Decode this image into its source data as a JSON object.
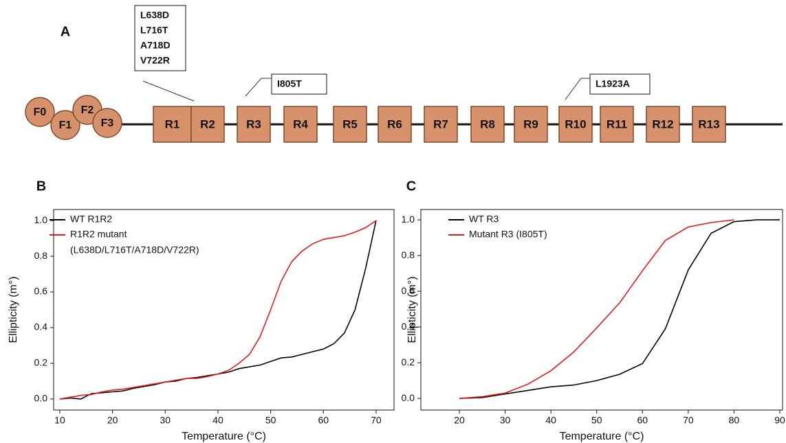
{
  "diagram": {
    "label": "A",
    "domains": [
      "F0",
      "F1",
      "F2",
      "F3"
    ],
    "repeats": [
      "R1",
      "R2",
      "R3",
      "R4",
      "R5",
      "R6",
      "R7",
      "R8",
      "R9",
      "R10",
      "R11",
      "R12",
      "R13"
    ],
    "mutations": [
      [
        "L638D",
        "L716T",
        "A718D",
        "V722R"
      ],
      [
        "I805T"
      ],
      [
        "L1923A"
      ]
    ]
  },
  "chart_data": [
    {
      "type": "line",
      "label": "B",
      "xlabel": "Temperature (°C)",
      "ylabel": "Ellipticity (m°)",
      "xlim": [
        8.83,
        73.4
      ],
      "ylim": [
        -0.062,
        1.062
      ],
      "xticks": [
        10,
        20,
        30,
        40,
        50,
        60,
        70
      ],
      "yticks": [
        {
          "value": 0,
          "label": "0.0"
        },
        0.2,
        0.4,
        0.6,
        0.8,
        {
          "value": 1,
          "label": "1.0"
        }
      ],
      "series": [
        {
          "name": "WT R1R2",
          "color": "#000000",
          "x": [
            10,
            12,
            14,
            16,
            18,
            20,
            22,
            24,
            26,
            28,
            30,
            32,
            34,
            36,
            38,
            40,
            42,
            44,
            46,
            48,
            50,
            52,
            54,
            56,
            58,
            60,
            62,
            64,
            66,
            68,
            70
          ],
          "values": [
            0.0,
            0.005,
            0.0,
            0.03,
            0.035,
            0.04,
            0.045,
            0.06,
            0.07,
            0.08,
            0.095,
            0.1,
            0.115,
            0.12,
            0.13,
            0.14,
            0.15,
            0.17,
            0.18,
            0.19,
            0.21,
            0.23,
            0.235,
            0.25,
            0.265,
            0.28,
            0.31,
            0.37,
            0.5,
            0.73,
            1.0
          ]
        },
        {
          "name": "R1R2 mutant",
          "note": "(L638D/L716T/A718D/V722R)",
          "color": "#e8191c",
          "x": [
            10,
            12,
            14,
            16,
            18,
            20,
            22,
            24,
            26,
            28,
            30,
            32,
            34,
            36,
            38,
            40,
            42,
            44,
            46,
            48,
            50,
            52,
            54,
            56,
            58,
            60,
            62,
            64,
            66,
            68,
            70
          ],
          "values": [
            0.0,
            0.01,
            0.02,
            0.025,
            0.04,
            0.05,
            0.055,
            0.065,
            0.075,
            0.085,
            0.095,
            0.105,
            0.115,
            0.115,
            0.125,
            0.14,
            0.16,
            0.2,
            0.25,
            0.35,
            0.5,
            0.66,
            0.77,
            0.83,
            0.87,
            0.895,
            0.905,
            0.915,
            0.935,
            0.96,
            1.0
          ]
        }
      ]
    },
    {
      "type": "line",
      "label": "C",
      "xlabel": "Temperature (°C)",
      "ylabel": "Ellipticity (m°)",
      "xlim": [
        11.59,
        90.6
      ],
      "ylim": [
        -0.065,
        1.058
      ],
      "xticks": [
        20,
        30,
        40,
        50,
        60,
        70,
        80,
        90
      ],
      "yticks": [
        {
          "value": 0,
          "label": "0.0"
        },
        0.2,
        0.4,
        0.6,
        0.8,
        {
          "value": 1,
          "label": "1.0"
        }
      ],
      "series": [
        {
          "name": "WT R3",
          "color": "#000000",
          "x": [
            20,
            25,
            30,
            35,
            40,
            45,
            50,
            55,
            60,
            65,
            70,
            75,
            80,
            85,
            90
          ],
          "values": [
            0.0,
            0.005,
            0.025,
            0.045,
            0.065,
            0.075,
            0.1,
            0.135,
            0.195,
            0.39,
            0.72,
            0.925,
            0.99,
            1.0,
            1.0
          ]
        },
        {
          "name": "Mutant R3 (I805T)",
          "color": "#e8191c",
          "x": [
            20,
            25,
            30,
            35,
            40,
            45,
            50,
            55,
            60,
            65,
            70,
            75,
            80
          ],
          "values": [
            0.0,
            0.01,
            0.03,
            0.08,
            0.155,
            0.26,
            0.395,
            0.535,
            0.715,
            0.885,
            0.96,
            0.985,
            1.0
          ]
        }
      ]
    }
  ]
}
